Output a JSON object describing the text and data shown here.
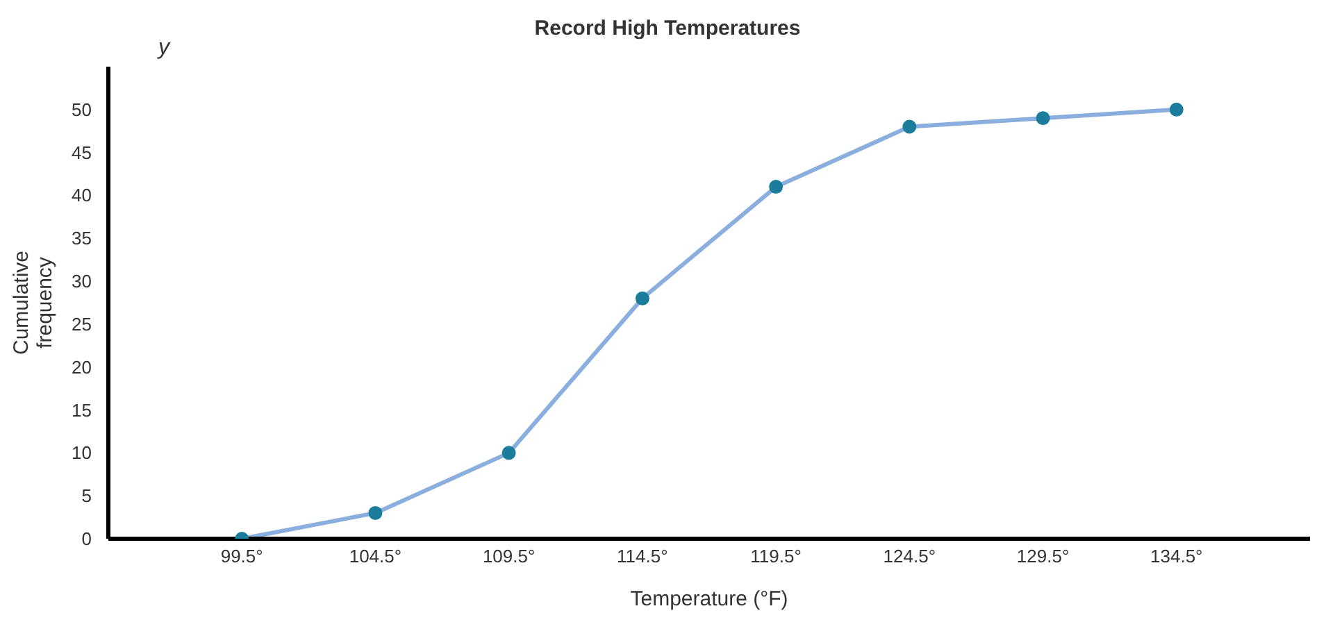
{
  "chart_data": {
    "type": "line",
    "title": "Record High Temperatures",
    "xlabel": "Temperature (°F)",
    "ylabel": "Cumulative frequency",
    "annotations": [
      "y"
    ],
    "x": [
      99.5,
      104.5,
      109.5,
      114.5,
      119.5,
      124.5,
      129.5,
      134.5
    ],
    "series": [
      {
        "color": "#8aaede",
        "colors": [
          "#1b7c9c",
          "#1b7c9c",
          "#1b7c9c",
          "#1b7c9c",
          "#1b7c9c",
          "#1b7c9c",
          "#1b7c9c",
          "#1b7c9c"
        ],
        "values": [
          0,
          3,
          10,
          28,
          41,
          48,
          49,
          50
        ]
      }
    ],
    "xlim": [
      94.5,
      139.5
    ],
    "xticks": [
      {
        "value": 99.5,
        "label": "99.5°"
      },
      {
        "value": 104.5,
        "label": "104.5°"
      },
      {
        "value": 109.5,
        "label": "109.5°"
      },
      {
        "value": 114.5,
        "label": "114.5°"
      },
      {
        "value": 119.5,
        "label": "119.5°"
      },
      {
        "value": 124.5,
        "label": "124.5°"
      },
      {
        "value": 129.5,
        "label": "129.5°"
      },
      {
        "value": 134.5,
        "label": "134.5°"
      }
    ],
    "ylim": [
      0,
      55
    ],
    "yticks": [
      0,
      5,
      10,
      15,
      20,
      25,
      30,
      35,
      40,
      45,
      50
    ],
    "grid": false,
    "marker": "circle",
    "line_style": "solid"
  }
}
